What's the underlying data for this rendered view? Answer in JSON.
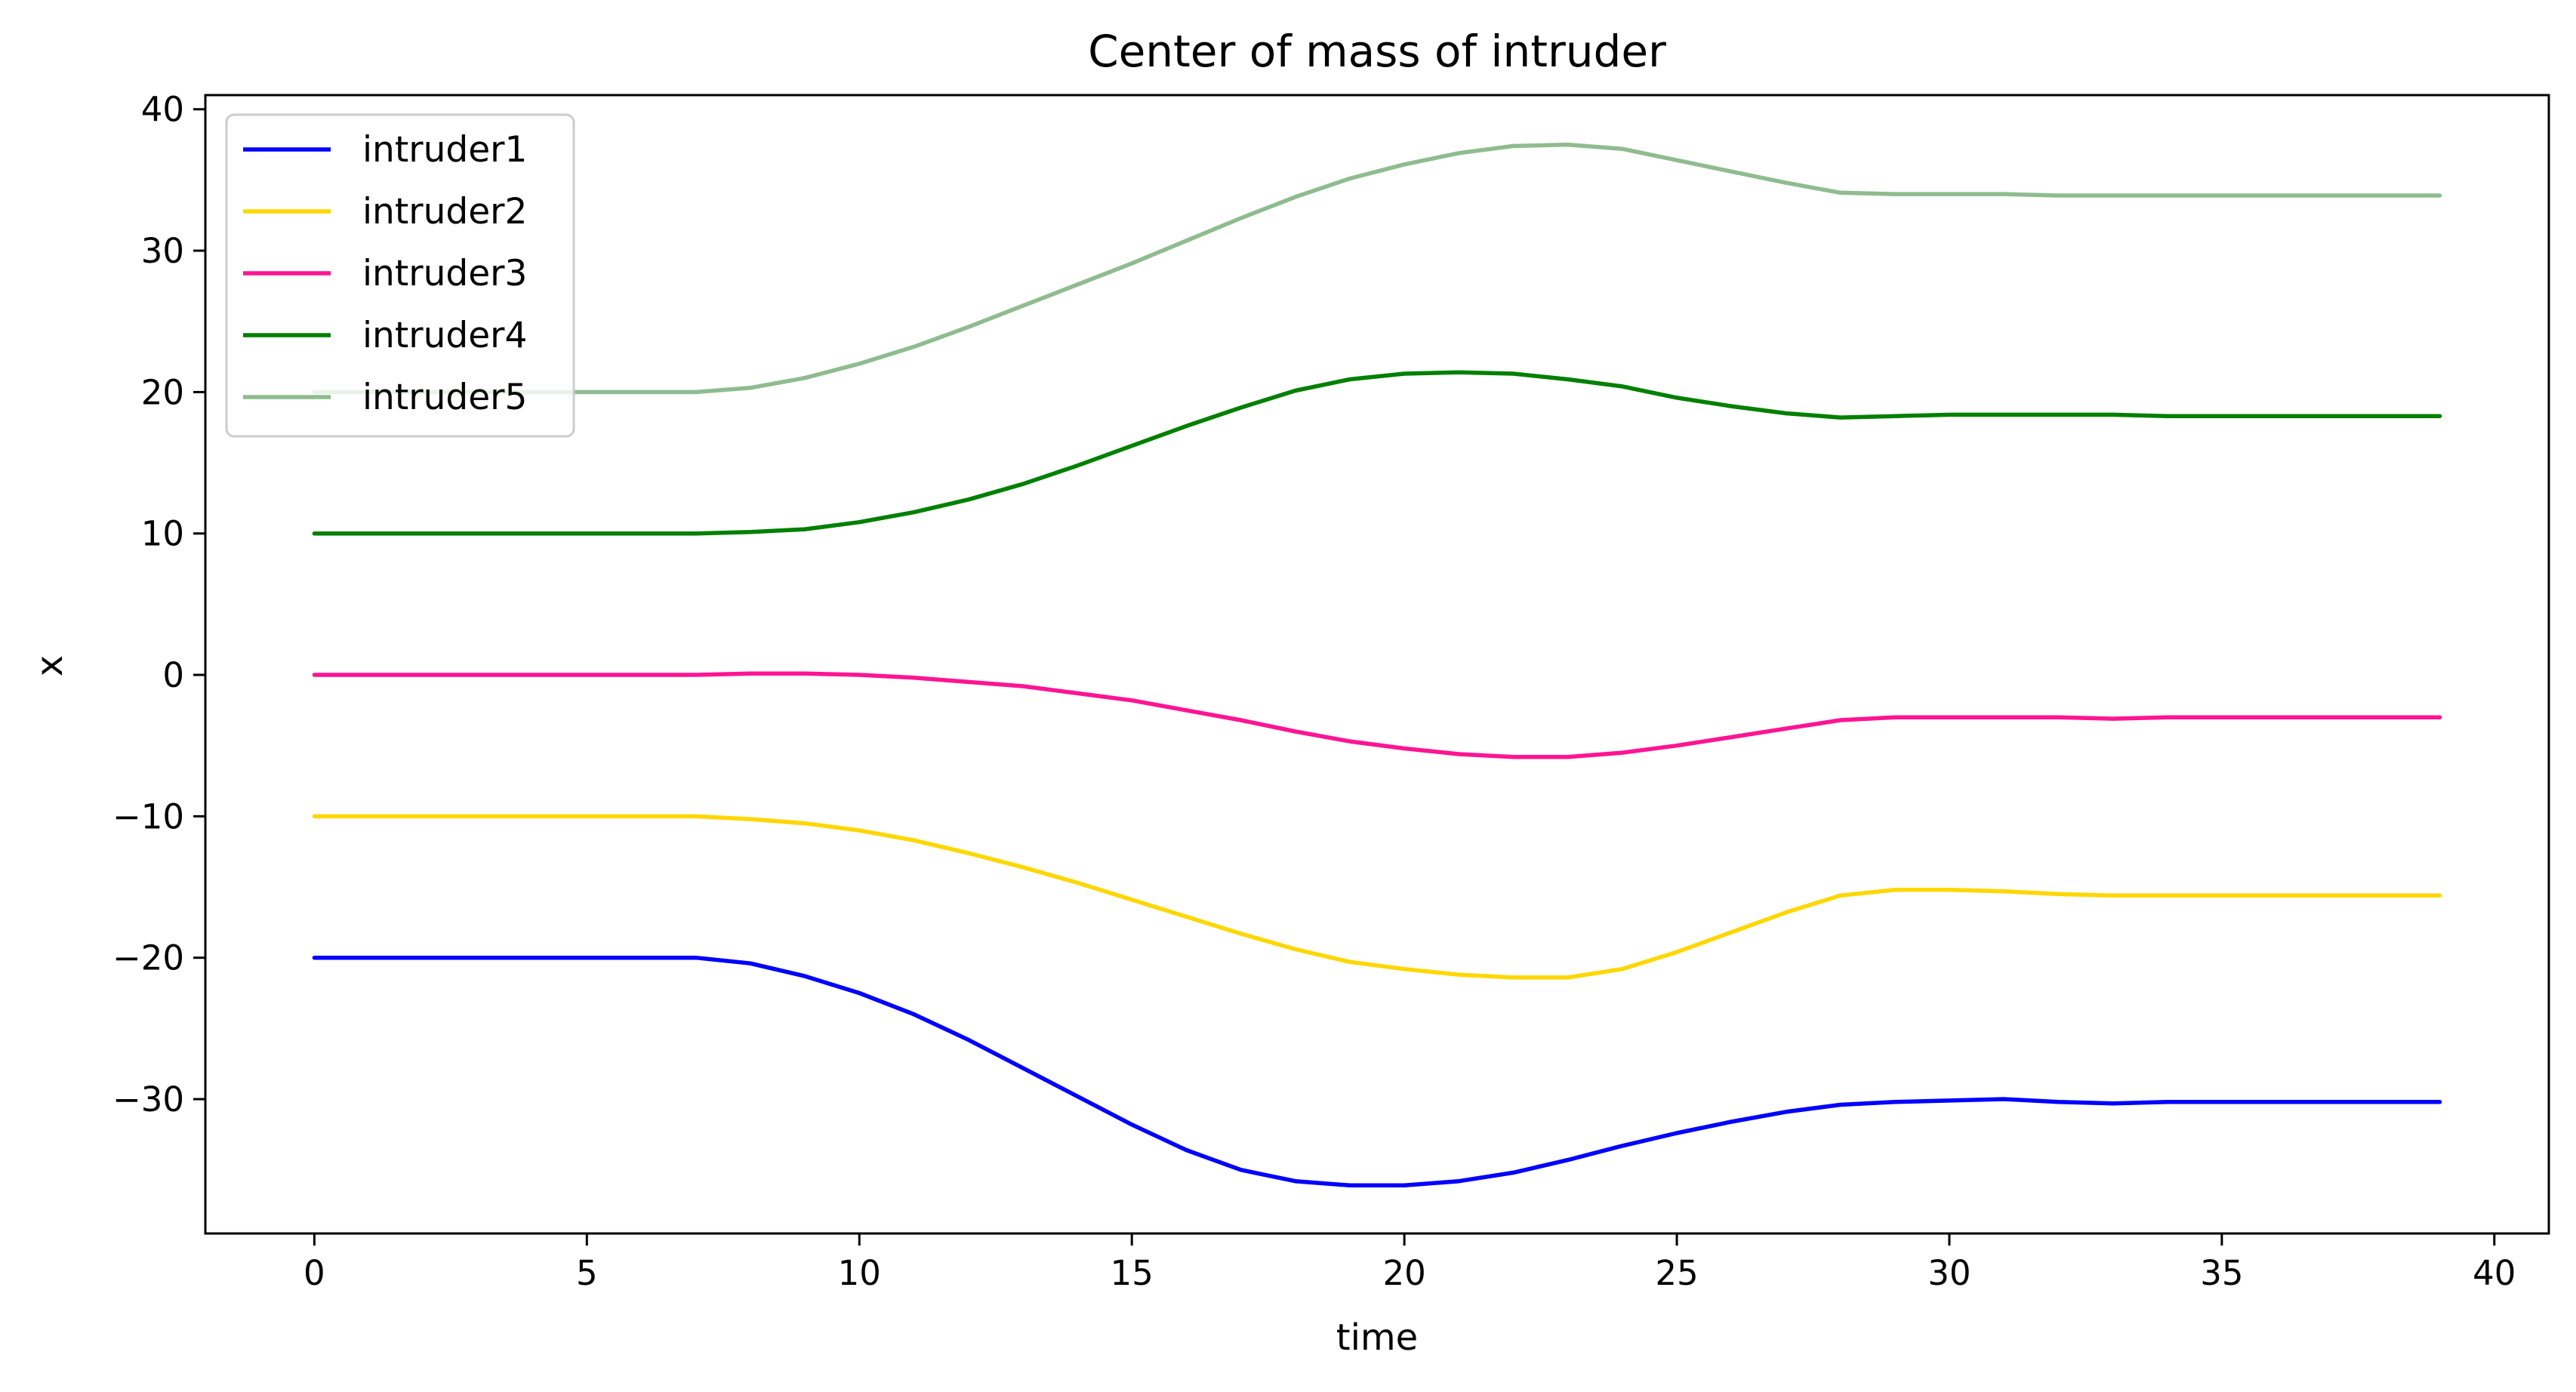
{
  "chart_data": {
    "type": "line",
    "title": "Center of mass of intruder",
    "xlabel": "time",
    "ylabel": "x",
    "xlim": [
      -2,
      41
    ],
    "ylim": [
      -39.5,
      41
    ],
    "xticks": [
      0,
      5,
      10,
      15,
      20,
      25,
      30,
      35,
      40
    ],
    "xtick_labels": [
      "0",
      "5",
      "10",
      "15",
      "20",
      "25",
      "30",
      "35",
      "40"
    ],
    "yticks": [
      -30,
      -20,
      -10,
      0,
      10,
      20,
      30,
      40
    ],
    "ytick_labels": [
      "−30",
      "−20",
      "−10",
      "0",
      "10",
      "20",
      "30",
      "40"
    ],
    "grid": false,
    "legend_position": "top-left",
    "x": [
      0,
      1,
      2,
      3,
      4,
      5,
      6,
      7,
      8,
      9,
      10,
      11,
      12,
      13,
      14,
      15,
      16,
      17,
      18,
      19,
      20,
      21,
      22,
      23,
      24,
      25,
      26,
      27,
      28,
      29,
      30,
      31,
      32,
      33,
      34,
      35,
      36,
      37,
      38,
      39
    ],
    "series": [
      {
        "name": "intruder1",
        "color": "#0000ff",
        "values": [
          -20,
          -20,
          -20,
          -20,
          -20,
          -20,
          -20,
          -20,
          -20.4,
          -21.3,
          -22.5,
          -24,
          -25.8,
          -27.8,
          -29.8,
          -31.8,
          -33.6,
          -35,
          -35.8,
          -36.1,
          -36.1,
          -35.8,
          -35.2,
          -34.3,
          -33.3,
          -32.4,
          -31.6,
          -30.9,
          -30.4,
          -30.2,
          -30.1,
          -30,
          -30.2,
          -30.3,
          -30.2,
          -30.2,
          -30.2,
          -30.2,
          -30.2,
          -30.2
        ]
      },
      {
        "name": "intruder2",
        "color": "#ffd700",
        "values": [
          -10,
          -10,
          -10,
          -10,
          -10,
          -10,
          -10,
          -10,
          -10.2,
          -10.5,
          -11,
          -11.7,
          -12.6,
          -13.6,
          -14.7,
          -15.9,
          -17.1,
          -18.3,
          -19.4,
          -20.3,
          -20.8,
          -21.2,
          -21.4,
          -21.4,
          -20.8,
          -19.6,
          -18.2,
          -16.8,
          -15.6,
          -15.2,
          -15.2,
          -15.3,
          -15.5,
          -15.6,
          -15.6,
          -15.6,
          -15.6,
          -15.6,
          -15.6,
          -15.6
        ]
      },
      {
        "name": "intruder3",
        "color": "#ff1493",
        "values": [
          0,
          0,
          0,
          0,
          0,
          0,
          0,
          0,
          0.1,
          0.1,
          0,
          -0.2,
          -0.5,
          -0.8,
          -1.3,
          -1.8,
          -2.5,
          -3.2,
          -4,
          -4.7,
          -5.2,
          -5.6,
          -5.8,
          -5.8,
          -5.5,
          -5,
          -4.4,
          -3.8,
          -3.2,
          -3,
          -3,
          -3,
          -3,
          -3.1,
          -3,
          -3,
          -3,
          -3,
          -3,
          -3
        ]
      },
      {
        "name": "intruder4",
        "color": "#008000",
        "values": [
          10,
          10,
          10,
          10,
          10,
          10,
          10,
          10,
          10.1,
          10.3,
          10.8,
          11.5,
          12.4,
          13.5,
          14.8,
          16.2,
          17.6,
          18.9,
          20.1,
          20.9,
          21.3,
          21.4,
          21.3,
          20.9,
          20.4,
          19.6,
          19,
          18.5,
          18.2,
          18.3,
          18.4,
          18.4,
          18.4,
          18.4,
          18.3,
          18.3,
          18.3,
          18.3,
          18.3,
          18.3
        ]
      },
      {
        "name": "intruder5",
        "color": "#8fbc8f",
        "values": [
          20,
          20,
          20,
          20,
          20,
          20,
          20,
          20,
          20.3,
          21,
          22,
          23.2,
          24.6,
          26.1,
          27.6,
          29.1,
          30.7,
          32.3,
          33.8,
          35.1,
          36.1,
          36.9,
          37.4,
          37.5,
          37.2,
          36.4,
          35.6,
          34.8,
          34.1,
          34,
          34,
          34,
          33.9,
          33.9,
          33.9,
          33.9,
          33.9,
          33.9,
          33.9,
          33.9
        ]
      }
    ]
  }
}
